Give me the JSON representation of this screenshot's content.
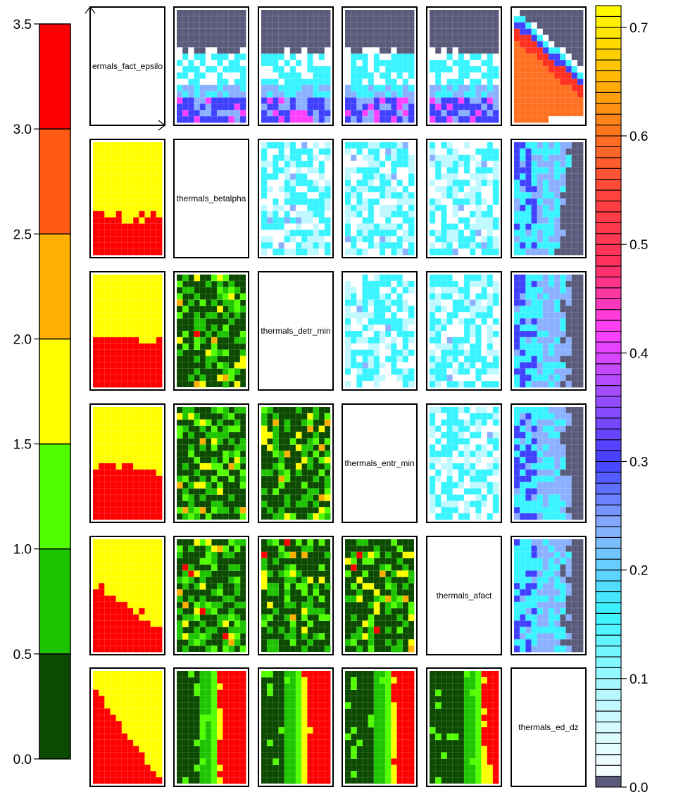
{
  "chart_data": {
    "type": "heatmap",
    "subtype": "pairwise contour matrix",
    "variables": [
      "thermals_fact_epsilon",
      "thermals_betalpha",
      "thermals_detr_min",
      "thermals_entr_min",
      "thermals_afact",
      "thermals_ed_dz"
    ],
    "diagonal_labels": [
      "ermals_fact_epsilo",
      "thermals_betalpha",
      "thermals_detr_min",
      "thermals_entr_min",
      "thermals_afact",
      "thermals_ed_dz"
    ],
    "left_colorbar": {
      "ticks": [
        "0.0",
        "0.5",
        "1.0",
        "1.5",
        "2.0",
        "2.5",
        "3.0",
        "3.5"
      ],
      "range": [
        0,
        3.5
      ],
      "levels": [
        0,
        0.5,
        1.0,
        1.5,
        2.0,
        2.5,
        3.0,
        3.5
      ],
      "colors": [
        "#0b4a00",
        "#1ec400",
        "#52ff00",
        "#ffff00",
        "#ffb000",
        "#ff5a14",
        "#ff0000"
      ]
    },
    "right_colorbar": {
      "ticks": [
        "0.0",
        "0.1",
        "0.2",
        "0.3",
        "0.4",
        "0.5",
        "0.6",
        "0.7"
      ],
      "range": [
        0,
        0.72
      ],
      "colors": [
        "#5a5a7a",
        "#ffffff",
        "#bff8ff",
        "#38f4ff",
        "#8ab0ff",
        "#4040ff",
        "#9d4dff",
        "#ff40ff",
        "#ff3060",
        "#ff4040",
        "#ff7020",
        "#ffc000",
        "#ffff00"
      ],
      "color_stops": [
        0,
        0.003,
        0.08,
        0.16,
        0.24,
        0.3,
        0.36,
        0.42,
        0.48,
        0.54,
        0.6,
        0.66,
        0.72
      ]
    },
    "lower_panel_colors": {
      "dark": "#0b4a00",
      "green": "#1ec400",
      "lime": "#52ff00",
      "yellow": "#ffff00",
      "orange": "#ffb000",
      "red": "#ff0000"
    },
    "upper_panel_colors": {
      "background": "#5a5a7a",
      "white": "#ffffff",
      "pale": "#bff8ff",
      "cyan": "#38f4ff",
      "light_blue": "#8ab0ff",
      "blue": "#4040ff",
      "magenta": "#ff40ff",
      "red": "#ff3020",
      "orange": "#ff7020"
    }
  }
}
